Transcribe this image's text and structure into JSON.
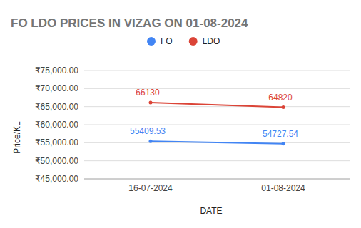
{
  "chart_data": {
    "type": "line",
    "title": "FO LDO PRICES IN VIZAG ON 01-08-2024",
    "x_label": "DATE",
    "y_label": "Price/KL",
    "categories": [
      "16-07-2024",
      "01-08-2024"
    ],
    "series": [
      {
        "name": "FO",
        "color": "#4285f4",
        "values": [
          55409.53,
          54727.54
        ]
      },
      {
        "name": "LDO",
        "color": "#db4437",
        "values": [
          66130,
          64820
        ]
      }
    ],
    "ylim": [
      45000,
      75000
    ],
    "yticks": [
      {
        "value": 45000,
        "label": "₹45,000.00"
      },
      {
        "value": 50000,
        "label": "₹50,000.00"
      },
      {
        "value": 55000,
        "label": "₹55,000.00"
      },
      {
        "value": 60000,
        "label": "₹60,000.00"
      },
      {
        "value": 65000,
        "label": "₹65,000.00"
      },
      {
        "value": 70000,
        "label": "₹70,000.00"
      },
      {
        "value": 75000,
        "label": "₹75,000.00"
      }
    ],
    "grid": true,
    "legend": "top",
    "data_labels": true,
    "marker": "circle"
  }
}
